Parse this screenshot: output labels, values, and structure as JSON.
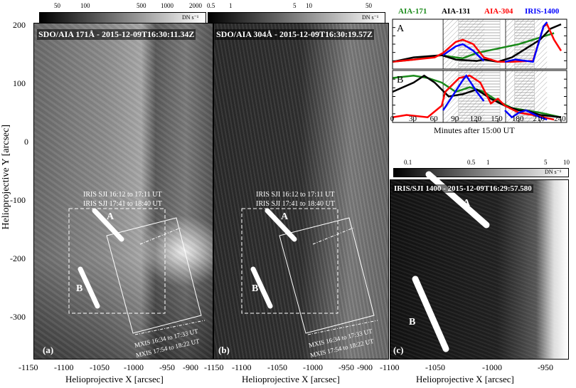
{
  "panel_a": {
    "title": "SDO/AIA 171Å - 2015-12-09T16:30:11.34Z",
    "label": "(a)",
    "colorbar": {
      "ticks": [
        "50",
        "100",
        "500",
        "1000",
        "2000"
      ],
      "unit": "DN s⁻¹"
    },
    "iris_fov_labels": [
      "IRIS SJI 16:12 to 17:11 UT",
      "IRIS SJI 17:41 to 18:40 UT"
    ],
    "mxis_labels": [
      "MXIS 16:34 to 17:33 UT",
      "MXIS 17:54 to 18:22 UT"
    ],
    "slit_labels": [
      "A",
      "B"
    ]
  },
  "panel_b": {
    "title": "SDO/AIA 304Å - 2015-12-09T16:30:19.57Z",
    "label": "(b)",
    "colorbar": {
      "ticks": [
        "0.5",
        "1",
        "5",
        "10",
        "50"
      ],
      "unit": "DN s⁻¹"
    },
    "iris_fov_labels": [
      "IRIS SJI 16:12 to 17:11 UT",
      "IRIS SJI 17:41 to 18:40 UT"
    ],
    "mxis_labels": [
      "MXIS 16:34 to 17:33 UT",
      "MXIS 17:54 to 18:22 UT"
    ],
    "slit_labels": [
      "A",
      "B"
    ]
  },
  "panel_c": {
    "title": "IRIS/SJI 1400 - 2015-12-09T16:29:57.580",
    "label": "(c)",
    "colorbar": {
      "ticks": [
        "0.1",
        "0.5",
        "1",
        "5",
        "10"
      ],
      "unit": "DN s⁻¹"
    },
    "slit_labels": [
      "A",
      "B"
    ],
    "x_ticks": [
      "-1100",
      "-1050",
      "-1000",
      "-950"
    ],
    "xlabel": "Helioprojective X [arcsec]"
  },
  "axes": {
    "ylabel": "Helioprojective Y [arcsec]",
    "y_ticks": [
      "200",
      "100",
      "0",
      "-100",
      "-200",
      "-300"
    ],
    "x_ticks_a": [
      "-1150",
      "-1100",
      "-1050",
      "-1000",
      "-950",
      "-900"
    ],
    "x_ticks_b": [
      "-1150",
      "-1100",
      "-1050",
      "-1000",
      "-950",
      "-900"
    ],
    "xlabel": "Helioprojective X [arcsec]"
  },
  "chart_data": {
    "type": "line",
    "xlabel": "Minutes after 15:00 UT",
    "xlim": [
      0,
      240
    ],
    "x_ticks": [
      "0",
      "30",
      "60",
      "90",
      "120",
      "150",
      "180",
      "210",
      "240"
    ],
    "legend": [
      {
        "name": "AIA-171",
        "color": "#1a8a1a"
      },
      {
        "name": "AIA-131",
        "color": "#000000"
      },
      {
        "name": "AIA-304",
        "color": "#ff0000"
      },
      {
        "name": "IRIS-1400",
        "color": "#0000ff"
      }
    ],
    "legend_placement": "top",
    "iris_intervals": [
      [
        72,
        131
      ],
      [
        161,
        220
      ]
    ],
    "mxis_intervals": [
      [
        94,
        153
      ],
      [
        174,
        202
      ]
    ],
    "subplots": [
      {
        "label": "A",
        "series": [
          {
            "name": "AIA-171",
            "x": [
              0,
              30,
              70,
              90,
              100,
              120,
              150,
              180,
              210,
              230
            ],
            "y": [
              0.1,
              0.15,
              0.25,
              0.2,
              0.18,
              0.3,
              0.4,
              0.5,
              0.65,
              0.75
            ]
          },
          {
            "name": "AIA-131",
            "x": [
              0,
              30,
              70,
              90,
              120,
              130,
              150,
              170,
              190,
              210,
              225,
              240
            ],
            "y": [
              0.1,
              0.2,
              0.25,
              0.15,
              0.12,
              0.15,
              0.1,
              0.2,
              0.4,
              0.6,
              0.85,
              0.95
            ]
          },
          {
            "name": "AIA-304",
            "x": [
              0,
              30,
              60,
              72,
              90,
              100,
              115,
              130,
              150,
              170,
              200,
              215,
              220,
              230,
              240
            ],
            "y": [
              0.1,
              0.15,
              0.2,
              0.3,
              0.55,
              0.6,
              0.5,
              0.2,
              0.1,
              0.1,
              0.12,
              0.9,
              0.95,
              0.6,
              0.35
            ]
          },
          {
            "name": "IRIS-1400",
            "segments": [
              {
                "x": [
                  72,
                  90,
                  100,
                  115,
                  130
                ],
                "y": [
                  0.25,
                  0.45,
                  0.5,
                  0.35,
                  0.12
                ]
              },
              {
                "x": [
                  160,
                  175,
                  200,
                  215,
                  220
                ],
                "y": [
                  0.1,
                  0.15,
                  0.1,
                  0.9,
                  1.0
                ]
              }
            ]
          }
        ]
      },
      {
        "label": "B",
        "series": [
          {
            "name": "AIA-171",
            "x": [
              0,
              30,
              50,
              70,
              90,
              110,
              130,
              150,
              170,
              190,
              210,
              240
            ],
            "y": [
              0.9,
              0.95,
              0.9,
              0.8,
              0.6,
              0.7,
              0.6,
              0.4,
              0.25,
              0.2,
              0.15,
              0.05
            ]
          },
          {
            "name": "AIA-131",
            "x": [
              0,
              30,
              45,
              60,
              80,
              100,
              120,
              140,
              160,
              180,
              190,
              210,
              240
            ],
            "y": [
              0.6,
              0.8,
              0.95,
              0.8,
              0.5,
              0.55,
              0.65,
              0.45,
              0.3,
              0.2,
              0.2,
              0.1,
              0.05
            ]
          },
          {
            "name": "AIA-304",
            "x": [
              0,
              20,
              50,
              70,
              75,
              95,
              110,
              125,
              140,
              150,
              160,
              180,
              200,
              230
            ],
            "y": [
              0.05,
              0.1,
              0.05,
              0.3,
              0.6,
              0.9,
              0.95,
              0.8,
              0.35,
              0.45,
              0.3,
              0.15,
              0.1,
              0.0
            ]
          },
          {
            "name": "IRIS-1400",
            "segments": [
              {
                "x": [
                  72,
                  85,
                  100,
                  105,
                  120,
                  130
                ],
                "y": [
                  0.2,
                  0.5,
                  0.85,
                  0.95,
                  0.6,
                  0.4
                ]
              },
              {
                "x": [
                  160,
                  170,
                  180,
                  190,
                  210,
                  220
                ],
                "y": [
                  0.2,
                  0.05,
                  0.15,
                  0.2,
                  0.05,
                  0.0
                ]
              }
            ]
          }
        ]
      }
    ]
  }
}
